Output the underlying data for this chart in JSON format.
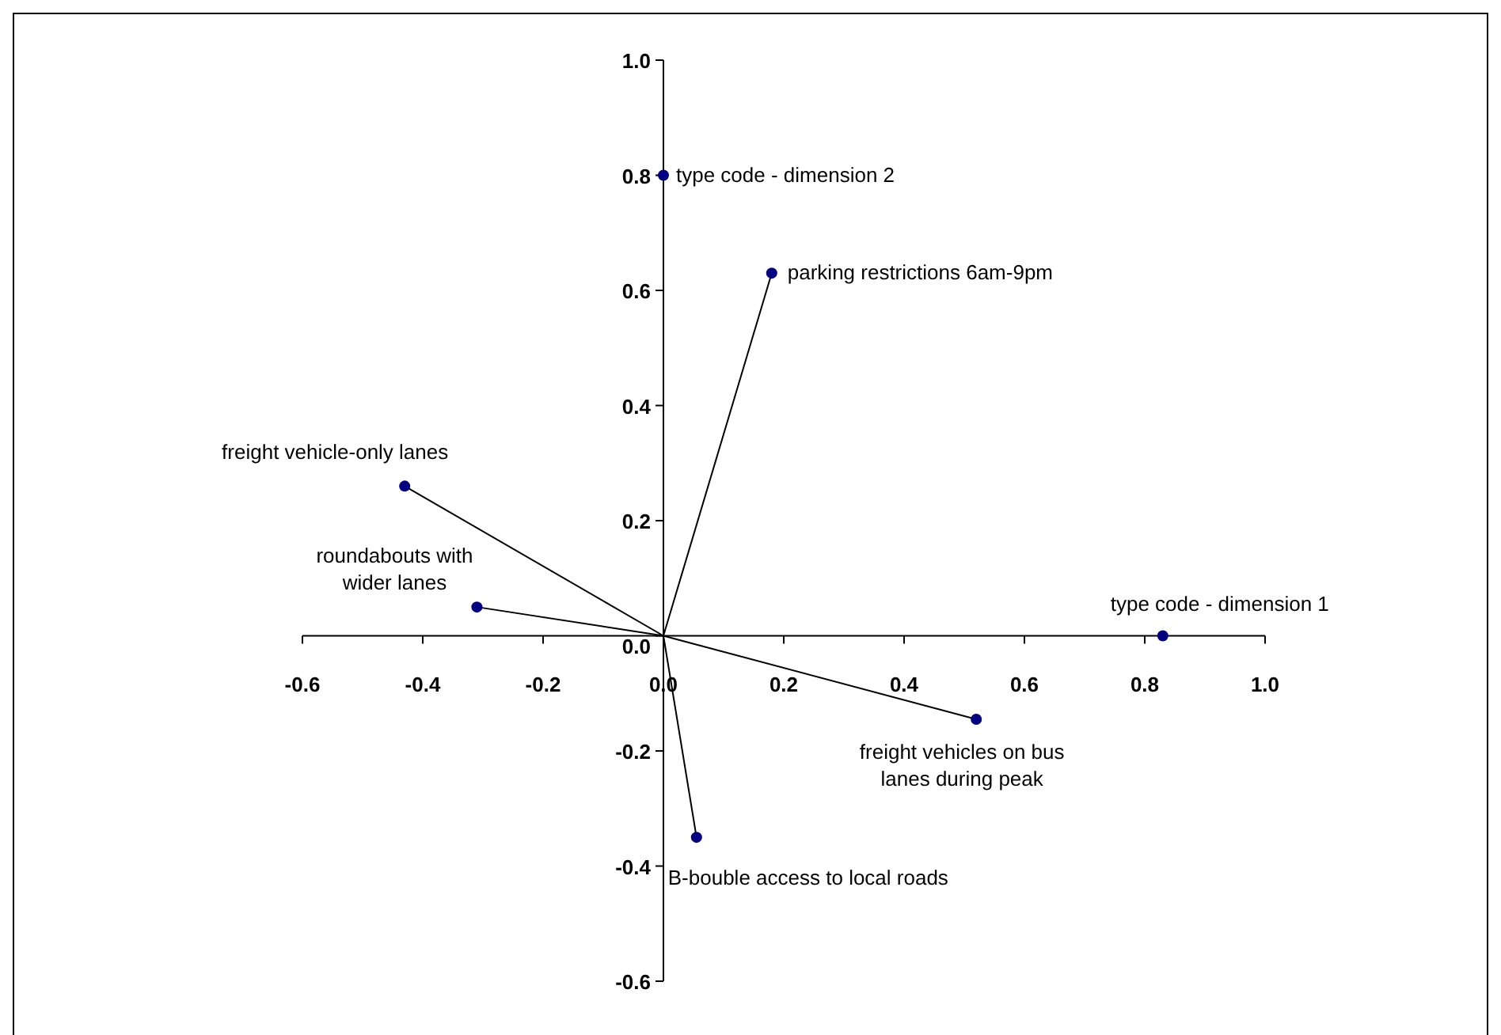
{
  "chart_data": {
    "type": "scatter",
    "xlim": [
      -0.6,
      1.0
    ],
    "ylim": [
      -0.6,
      1.0
    ],
    "xticks": [
      {
        "value": -0.6,
        "label": "-0.6"
      },
      {
        "value": -0.4,
        "label": "-0.4"
      },
      {
        "value": -0.2,
        "label": "-0.2"
      },
      {
        "value": 0,
        "label": "0.0"
      },
      {
        "value": 0.2,
        "label": "0.2"
      },
      {
        "value": 0.4,
        "label": "0.4"
      },
      {
        "value": 0.6,
        "label": "0.6"
      },
      {
        "value": 0.8,
        "label": "0.8"
      },
      {
        "value": 1,
        "label": "1.0"
      }
    ],
    "yticks": [
      {
        "value": -0.6,
        "label": "-0.6"
      },
      {
        "value": -0.4,
        "label": "-0.4"
      },
      {
        "value": -0.2,
        "label": "-0.2"
      },
      {
        "value": 0,
        "label": "0.0"
      },
      {
        "value": 0.2,
        "label": "0.2"
      },
      {
        "value": 0.4,
        "label": "0.4"
      },
      {
        "value": 0.6,
        "label": "0.6"
      },
      {
        "value": 0.8,
        "label": "0.8"
      },
      {
        "value": 1,
        "label": "1.0"
      }
    ],
    "grid": false,
    "marker": "circle",
    "series": [
      {
        "type": "line",
        "marker": "none",
        "color": "#000000",
        "x": [
          0,
          0.18,
          null,
          0,
          -0.43,
          null,
          0,
          -0.31,
          null,
          0,
          0.52,
          null,
          0,
          0.055
        ],
        "values": [
          0,
          0.63,
          null,
          0,
          0.26,
          null,
          0,
          0.05,
          null,
          0,
          -0.145,
          null,
          0,
          -0.35
        ]
      },
      {
        "color": "#000080",
        "x": [
          0,
          0.18,
          -0.43,
          -0.31,
          0.83,
          0.52,
          0.055
        ],
        "values": [
          0.8,
          0.63,
          0.26,
          0.05,
          0,
          -0.145,
          -0.35
        ]
      }
    ],
    "annotations": [
      {
        "text": "type code - dimension 2",
        "x": 0,
        "y": 0.8
      },
      {
        "text": "parking restrictions 6am-9pm",
        "x": 0.18,
        "y": 0.63
      },
      {
        "text": "freight vehicle-only lanes",
        "x": -0.43,
        "y": 0.26
      },
      {
        "text": "roundabouts with\nwider lanes",
        "x": -0.31,
        "y": 0.05
      },
      {
        "text": "type code - dimension 1",
        "x": 0.83,
        "y": 0
      },
      {
        "text": "freight vehicles on bus\nlanes during peak",
        "x": 0.52,
        "y": -0.145
      },
      {
        "text": "B-bouble access to local roads",
        "x": 0.055,
        "y": -0.35
      }
    ]
  }
}
